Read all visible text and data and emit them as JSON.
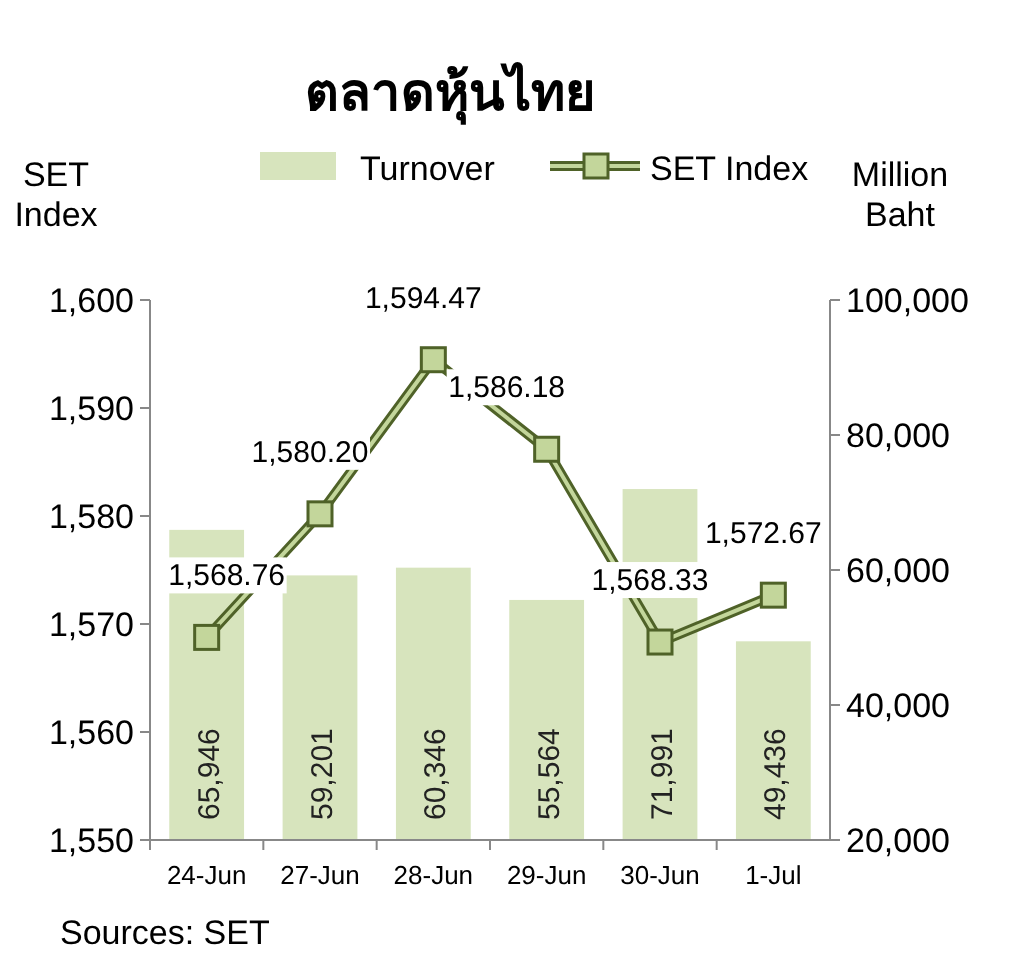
{
  "chart_data": {
    "type": "bar",
    "title": "ตลาดหุ้นไทย",
    "ylabel": "SET Index",
    "y2label": "Million Baht",
    "categories": [
      "24-Jun",
      "27-Jun",
      "28-Jun",
      "29-Jun",
      "30-Jun",
      "1-Jul"
    ],
    "series": [
      {
        "name": "Turnover",
        "axis": "y2",
        "color": "#d7e4bd",
        "values": [
          65946,
          59201,
          60346,
          55564,
          71991,
          49436
        ],
        "value_labels": [
          "65,946",
          "59,201",
          "60,346",
          "55,564",
          "71,991",
          "49,436"
        ]
      },
      {
        "name": "SET Index",
        "type": "line",
        "axis": "y",
        "color": "#4f6228",
        "marker": "square",
        "values": [
          1568.76,
          1580.2,
          1594.47,
          1586.18,
          1568.33,
          1572.67
        ],
        "value_labels": [
          "1,568.76",
          "1,580.20",
          "1,594.47",
          "1,586.18",
          "1,568.33",
          "1,572.67"
        ]
      }
    ],
    "ylim": [
      1550,
      1600
    ],
    "yticks": [
      {
        "value": 1550,
        "label": "1,550"
      },
      {
        "value": 1560,
        "label": "1,560"
      },
      {
        "value": 1570,
        "label": "1,570"
      },
      {
        "value": 1580,
        "label": "1,580"
      },
      {
        "value": 1590,
        "label": "1,590"
      },
      {
        "value": 1600,
        "label": "1,600"
      }
    ],
    "y2lim": [
      20000,
      100000
    ],
    "y2ticks": [
      {
        "value": 20000,
        "label": "20,000"
      },
      {
        "value": 40000,
        "label": "40,000"
      },
      {
        "value": 60000,
        "label": "60,000"
      },
      {
        "value": 80000,
        "label": "80,000"
      },
      {
        "value": 100000,
        "label": "100,000"
      }
    ],
    "legend": "top",
    "grid": false,
    "annotations": [
      "Sources: SET"
    ]
  }
}
